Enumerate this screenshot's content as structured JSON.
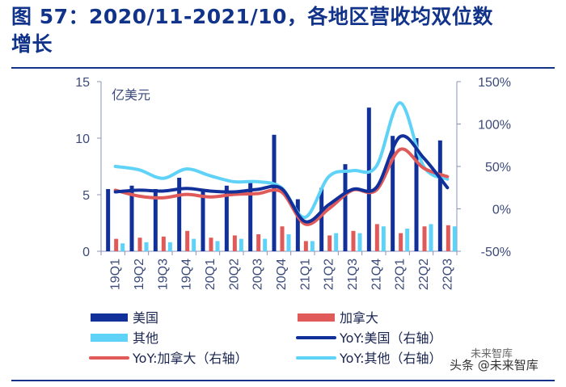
{
  "title": {
    "line1": "图 57：2020/11-2021/10，各地区营收均双位数",
    "line2": "增长"
  },
  "chart_data": {
    "type": "bar",
    "unit_label": "亿美元",
    "categories": [
      "19Q1",
      "19Q2",
      "19Q3",
      "19Q4",
      "20Q1",
      "20Q2",
      "20Q3",
      "20Q4",
      "21Q1",
      "21Q2",
      "21Q3",
      "21Q4",
      "22Q1",
      "22Q2",
      "22Q3"
    ],
    "left_axis": {
      "min": 0,
      "max": 15,
      "ticks": [
        "0",
        "5",
        "10",
        "15"
      ]
    },
    "right_axis": {
      "min": -50,
      "max": 150,
      "ticks": [
        "-50%",
        "0%",
        "50%",
        "100%",
        "150%"
      ]
    },
    "bar_series": [
      {
        "name": "美国",
        "color": "#12309a",
        "values": [
          5.5,
          5.8,
          5.5,
          6.5,
          5.5,
          5.8,
          6.2,
          10.3,
          4.6,
          5.6,
          7.7,
          12.7,
          10.2,
          10.0,
          9.8
        ]
      },
      {
        "name": "加拿大",
        "color": "#e05a5a",
        "values": [
          1.1,
          1.2,
          1.3,
          1.8,
          1.2,
          1.4,
          1.5,
          2.2,
          0.9,
          1.4,
          1.8,
          2.4,
          1.6,
          2.2,
          2.3
        ]
      },
      {
        "name": "其他",
        "color": "#5fd2f7",
        "values": [
          0.7,
          0.8,
          0.8,
          1.1,
          0.9,
          1.1,
          1.1,
          1.5,
          0.9,
          1.6,
          1.6,
          2.2,
          2.0,
          2.4,
          2.2
        ]
      }
    ],
    "line_series": [
      {
        "name": "YoY:美国（右轴）",
        "color": "#12309a",
        "values": [
          20,
          22,
          21,
          24,
          21,
          20,
          23,
          24,
          -15,
          5,
          23,
          25,
          85,
          60,
          25
        ]
      },
      {
        "name": "YoY:加拿大（右轴）",
        "color": "#e05a5a",
        "values": [
          22,
          15,
          13,
          17,
          14,
          17,
          18,
          20,
          -18,
          0,
          22,
          22,
          70,
          48,
          38
        ]
      },
      {
        "name": "YoY:其他（右轴）",
        "color": "#5fd2f7",
        "values": [
          50,
          46,
          36,
          47,
          39,
          32,
          32,
          25,
          -10,
          38,
          45,
          50,
          125,
          50,
          35
        ]
      }
    ],
    "legend": [
      "美国",
      "加拿大",
      "其他",
      "YoY:美国（右轴）",
      "YoY:加拿大（右轴）",
      "YoY:其他（右轴）"
    ]
  },
  "watermark": {
    "text": "头条 @未来智库",
    "badge": "未来智库"
  }
}
